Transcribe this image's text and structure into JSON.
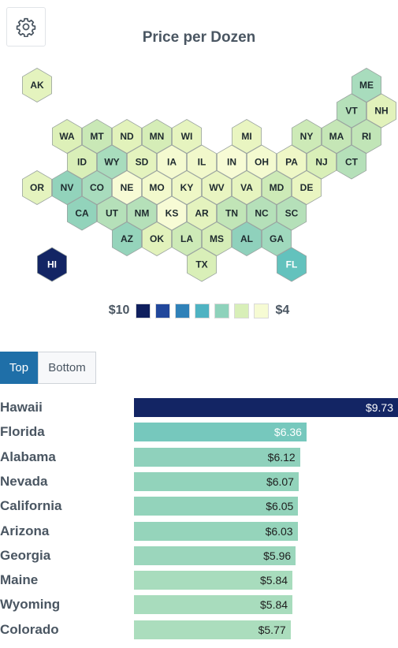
{
  "header": {
    "settings_icon": "gear-icon"
  },
  "chart_data": [
    {
      "type": "heatmap",
      "title": "Price per Dozen",
      "colors": [
        "#0f1f5e",
        "#21479b",
        "#2f81b8",
        "#4fb3c2",
        "#8ed2bb",
        "#d8efb8",
        "#f6fbd3"
      ],
      "legend": {
        "max_label": "$10",
        "min_label": "$4"
      },
      "states": [
        {
          "abbr": "AK",
          "row": 0,
          "col": 0,
          "color": "#e4f3be"
        },
        {
          "abbr": "ME",
          "row": 0,
          "col": 11,
          "color": "#a8dcbd"
        },
        {
          "abbr": "VT",
          "row": 1,
          "col": 10,
          "color": "#b5e0b9"
        },
        {
          "abbr": "NH",
          "row": 1,
          "col": 11,
          "color": "#e2f2bb"
        },
        {
          "abbr": "WA",
          "row": 2,
          "col": 1,
          "color": "#ddf0b8"
        },
        {
          "abbr": "MT",
          "row": 2,
          "col": 2,
          "color": "#c9e8b6"
        },
        {
          "abbr": "ND",
          "row": 2,
          "col": 3,
          "color": "#e2f2bb"
        },
        {
          "abbr": "MN",
          "row": 2,
          "col": 4,
          "color": "#d5edb7"
        },
        {
          "abbr": "WI",
          "row": 2,
          "col": 5,
          "color": "#e6f4bf"
        },
        {
          "abbr": "MI",
          "row": 2,
          "col": 7,
          "color": "#e9f5c1"
        },
        {
          "abbr": "NY",
          "row": 2,
          "col": 9,
          "color": "#cdeab7"
        },
        {
          "abbr": "MA",
          "row": 2,
          "col": 10,
          "color": "#c5e6b6"
        },
        {
          "abbr": "RI",
          "row": 2,
          "col": 11,
          "color": "#c1e5b7"
        },
        {
          "abbr": "ID",
          "row": 3,
          "col": 1,
          "color": "#d9efb8"
        },
        {
          "abbr": "WY",
          "row": 3,
          "col": 2,
          "color": "#a8dcbd"
        },
        {
          "abbr": "SD",
          "row": 3,
          "col": 3,
          "color": "#e4f3be"
        },
        {
          "abbr": "IA",
          "row": 3,
          "col": 4,
          "color": "#f4fad0"
        },
        {
          "abbr": "IL",
          "row": 3,
          "col": 5,
          "color": "#f1f8cb"
        },
        {
          "abbr": "IN",
          "row": 3,
          "col": 6,
          "color": "#f7fbd5"
        },
        {
          "abbr": "OH",
          "row": 3,
          "col": 7,
          "color": "#f4fad0"
        },
        {
          "abbr": "PA",
          "row": 3,
          "col": 8,
          "color": "#eef7c6"
        },
        {
          "abbr": "NJ",
          "row": 3,
          "col": 9,
          "color": "#d9efb8"
        },
        {
          "abbr": "CT",
          "row": 3,
          "col": 10,
          "color": "#b5e0b9"
        },
        {
          "abbr": "OR",
          "row": 4,
          "col": 0,
          "color": "#e4f3be"
        },
        {
          "abbr": "NV",
          "row": 4,
          "col": 1,
          "color": "#92d3bb"
        },
        {
          "abbr": "CO",
          "row": 4,
          "col": 2,
          "color": "#a8dcbd"
        },
        {
          "abbr": "NE",
          "row": 4,
          "col": 3,
          "color": "#f7fbd5"
        },
        {
          "abbr": "MO",
          "row": 4,
          "col": 4,
          "color": "#f2f9cc"
        },
        {
          "abbr": "KY",
          "row": 4,
          "col": 5,
          "color": "#eef7c6"
        },
        {
          "abbr": "WV",
          "row": 4,
          "col": 6,
          "color": "#e9f5c1"
        },
        {
          "abbr": "VA",
          "row": 4,
          "col": 7,
          "color": "#e6f4bf"
        },
        {
          "abbr": "MD",
          "row": 4,
          "col": 8,
          "color": "#cdeab7"
        },
        {
          "abbr": "DE",
          "row": 4,
          "col": 9,
          "color": "#e9f5c1"
        },
        {
          "abbr": "CA",
          "row": 5,
          "col": 1,
          "color": "#92d3bb"
        },
        {
          "abbr": "UT",
          "row": 5,
          "col": 2,
          "color": "#b5e0b9"
        },
        {
          "abbr": "NM",
          "row": 5,
          "col": 3,
          "color": "#b5e0b9"
        },
        {
          "abbr": "KS",
          "row": 5,
          "col": 4,
          "color": "#f7fbd5"
        },
        {
          "abbr": "AR",
          "row": 5,
          "col": 5,
          "color": "#e4f3be"
        },
        {
          "abbr": "TN",
          "row": 5,
          "col": 6,
          "color": "#c1e5b7"
        },
        {
          "abbr": "NC",
          "row": 5,
          "col": 7,
          "color": "#b5e0b9"
        },
        {
          "abbr": "SC",
          "row": 5,
          "col": 8,
          "color": "#b5e0b9"
        },
        {
          "abbr": "AZ",
          "row": 6,
          "col": 3,
          "color": "#95d4bb"
        },
        {
          "abbr": "OK",
          "row": 6,
          "col": 4,
          "color": "#e2f2bb"
        },
        {
          "abbr": "LA",
          "row": 6,
          "col": 5,
          "color": "#cdeab7"
        },
        {
          "abbr": "MS",
          "row": 6,
          "col": 6,
          "color": "#d5edb7"
        },
        {
          "abbr": "AL",
          "row": 6,
          "col": 7,
          "color": "#8fd1bc"
        },
        {
          "abbr": "GA",
          "row": 6,
          "col": 8,
          "color": "#a0d9bd"
        },
        {
          "abbr": "HI",
          "row": 7,
          "col": 0,
          "color": "#132564",
          "text_color": "#ffffff"
        },
        {
          "abbr": "TX",
          "row": 7,
          "col": 5,
          "color": "#d9efb8"
        },
        {
          "abbr": "FL",
          "row": 7,
          "col": 8,
          "color": "#63c2bd",
          "text_color": "#ffffff"
        }
      ]
    },
    {
      "type": "bar",
      "orientation": "horizontal",
      "categories": [
        "Hawaii",
        "Florida",
        "Alabama",
        "Nevada",
        "California",
        "Arizona",
        "Georgia",
        "Maine",
        "Wyoming",
        "Colorado"
      ],
      "values": [
        9.73,
        6.36,
        6.12,
        6.07,
        6.05,
        6.03,
        5.96,
        5.84,
        5.84,
        5.77
      ],
      "value_labels": [
        "$9.73",
        "$6.36",
        "$6.12",
        "$6.07",
        "$6.05",
        "$6.03",
        "$5.96",
        "$5.84",
        "$5.84",
        "$5.77"
      ],
      "bar_colors": [
        "#132564",
        "#76c8bd",
        "#8fd1bc",
        "#92d3bb",
        "#93d3bb",
        "#95d4bb",
        "#9bd6bc",
        "#a8dcbd",
        "#a8dcbd",
        "#abddbd"
      ],
      "label_colors": [
        "#ffffff",
        "#ffffff",
        "#1e1e1e",
        "#1e1e1e",
        "#1e1e1e",
        "#1e1e1e",
        "#1e1e1e",
        "#1e1e1e",
        "#1e1e1e",
        "#1e1e1e"
      ],
      "xlim": [
        0,
        9.73
      ]
    }
  ],
  "tabs": {
    "top_label": "Top",
    "bottom_label": "Bottom",
    "active": "top"
  }
}
